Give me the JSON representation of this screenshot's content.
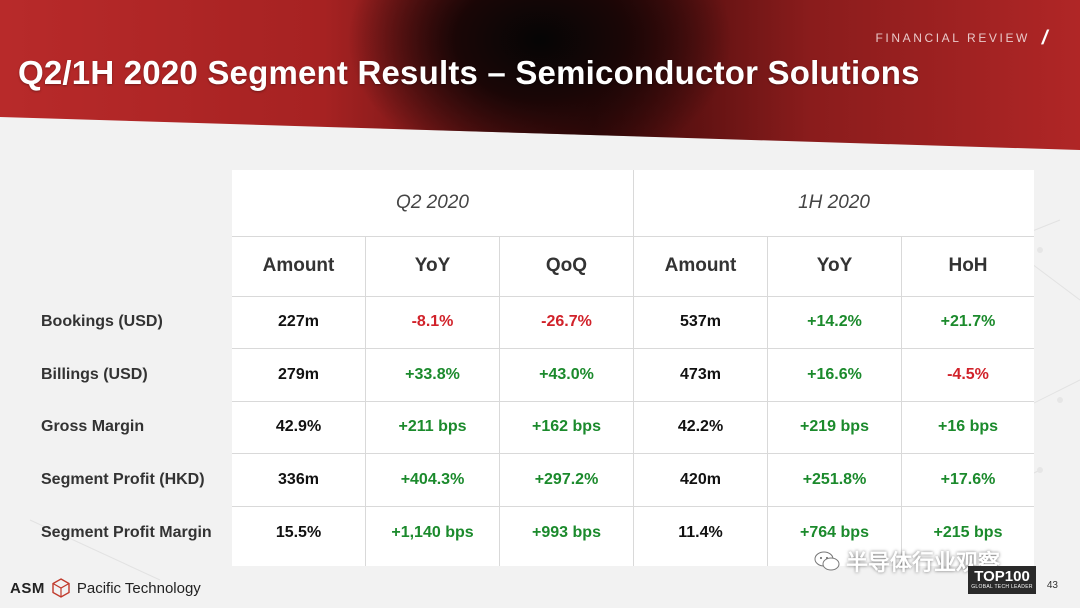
{
  "header": {
    "kicker": "FINANCIAL REVIEW",
    "title": "Q2/1H 2020 Segment Results – Semiconductor Solutions"
  },
  "table": {
    "periods": [
      "Q2 2020",
      "1H 2020"
    ],
    "columns": [
      "Amount",
      "YoY",
      "QoQ",
      "Amount",
      "YoY",
      "HoH"
    ],
    "rows": [
      {
        "label": "Bookings (USD)",
        "values": [
          "227m",
          "-8.1%",
          "-26.7%",
          "537m",
          "+14.2%",
          "+21.7%"
        ]
      },
      {
        "label": "Billings (USD)",
        "values": [
          "279m",
          "+33.8%",
          "+43.0%",
          "473m",
          "+16.6%",
          "-4.5%"
        ]
      },
      {
        "label": "Gross Margin",
        "values": [
          "42.9%",
          "+211 bps",
          "+162 bps",
          "42.2%",
          "+219 bps",
          "+16 bps"
        ]
      },
      {
        "label": "Segment Profit (HKD)",
        "values": [
          "336m",
          "+404.3%",
          "+297.2%",
          "420m",
          "+251.8%",
          "+17.6%"
        ]
      },
      {
        "label": "Segment Profit Margin",
        "values": [
          "15.5%",
          "+1,140 bps",
          "+993 bps",
          "11.4%",
          "+764 bps",
          "+215 bps"
        ]
      }
    ],
    "colors": {
      "positive": "#1b8a2c",
      "negative": "#d1222a"
    }
  },
  "footer": {
    "logo_left": "ASM",
    "logo_right": "Pacific Technology",
    "watermark": "半导体行业观察",
    "badge_big": "TOP100",
    "badge_small": "GLOBAL TECH LEADER",
    "page_number": "43"
  }
}
